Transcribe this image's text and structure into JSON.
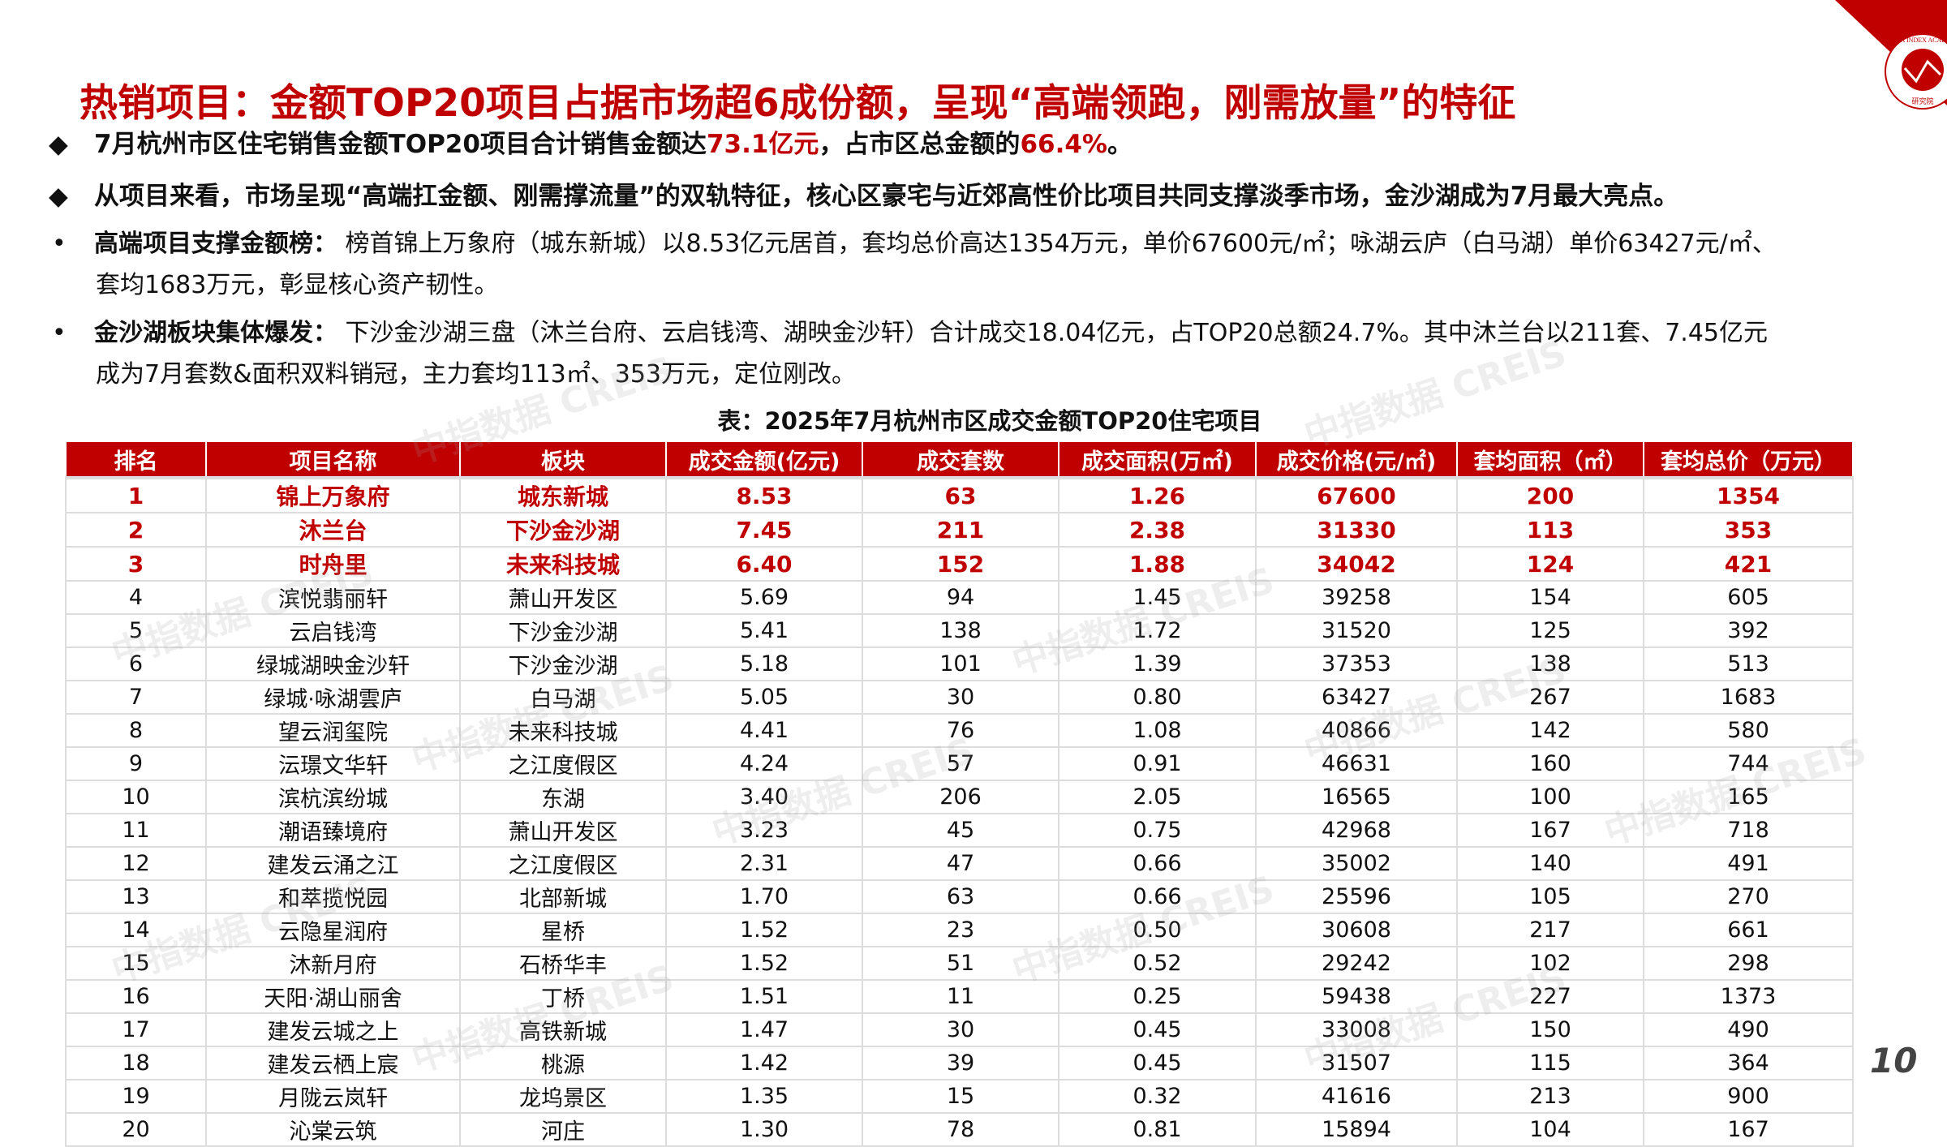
{
  "title": "热销项目：金额TOP20项目占据市场超6成份额，呈现“高端领跑，刚需放量”的特征",
  "logo": {
    "text": "CHINA INDEX ACADEMY",
    "inner": "中指",
    "bottom": "研究院"
  },
  "watermark": "中指数据 CREIS",
  "bullets": [
    {
      "icon": "diamond",
      "parts": [
        "7月杭州市区住宅销售金额TOP20项目合计销售金额达",
        "73.1亿元",
        "，占市区总金额的",
        "66.4%",
        "。"
      ]
    },
    {
      "icon": "diamond",
      "text": "从项目来看，市场呈现“高端扛金额、刚需撑流量”的双轨特征，核心区豪宅与近郊高性价比项目共同支撑淡季市场，金沙湖成为7月最大亮点。"
    },
    {
      "icon": "dot",
      "label": "高端项目支撑金额榜：",
      "line1": "榜首锦上万象府（城东新城）以8.53亿元居首，套均总价高达1354万元，单价67600元/㎡；咏湖云庐（白马湖）单价63427元/㎡、",
      "line2": "套均1683万元，彰显核心资产韧性。"
    },
    {
      "icon": "dot",
      "label": "金沙湖板块集体爆发：",
      "line1": "下沙金沙湖三盘（沐兰台府、云启钱湾、湖映金沙轩）合计成交18.04亿元，占TOP20总额24.7%。其中沐兰台以211套、7.45亿元",
      "line2": "成为7月套数&面积双料销冠，主力套均113㎡、353万元，定位刚改。"
    }
  ],
  "table": {
    "caption": "表：2025年7月杭州市区成交金额TOP20住宅项目",
    "headers": [
      "排名",
      "项目名称",
      "板块",
      "成交金额(亿元)",
      "成交套数",
      "成交面积(万㎡)",
      "成交价格(元/㎡)",
      "套均面积（㎡）",
      "套均总价（万元）"
    ],
    "highlight_color": "#c00000",
    "rows": [
      [
        "1",
        "锦上万象府",
        "城东新城",
        "8.53",
        "63",
        "1.26",
        "67600",
        "200",
        "1354"
      ],
      [
        "2",
        "沐兰台",
        "下沙金沙湖",
        "7.45",
        "211",
        "2.38",
        "31330",
        "113",
        "353"
      ],
      [
        "3",
        "时舟里",
        "未来科技城",
        "6.40",
        "152",
        "1.88",
        "34042",
        "124",
        "421"
      ],
      [
        "4",
        "滨悦翡丽轩",
        "萧山开发区",
        "5.69",
        "94",
        "1.45",
        "39258",
        "154",
        "605"
      ],
      [
        "5",
        "云启钱湾",
        "下沙金沙湖",
        "5.41",
        "138",
        "1.72",
        "31520",
        "125",
        "392"
      ],
      [
        "6",
        "绿城湖映金沙轩",
        "下沙金沙湖",
        "5.18",
        "101",
        "1.39",
        "37353",
        "138",
        "513"
      ],
      [
        "7",
        "绿城·咏湖雲庐",
        "白马湖",
        "5.05",
        "30",
        "0.80",
        "63427",
        "267",
        "1683"
      ],
      [
        "8",
        "望云润玺院",
        "未来科技城",
        "4.41",
        "76",
        "1.08",
        "40866",
        "142",
        "580"
      ],
      [
        "9",
        "沄璟文华轩",
        "之江度假区",
        "4.24",
        "57",
        "0.91",
        "46631",
        "160",
        "744"
      ],
      [
        "10",
        "滨杭滨纷城",
        "东湖",
        "3.40",
        "206",
        "2.05",
        "16565",
        "100",
        "165"
      ],
      [
        "11",
        "潮语臻境府",
        "萧山开发区",
        "3.23",
        "45",
        "0.75",
        "42968",
        "167",
        "718"
      ],
      [
        "12",
        "建发云涌之江",
        "之江度假区",
        "2.31",
        "47",
        "0.66",
        "35002",
        "140",
        "491"
      ],
      [
        "13",
        "和萃揽悦园",
        "北部新城",
        "1.70",
        "63",
        "0.66",
        "25596",
        "105",
        "270"
      ],
      [
        "14",
        "云隐星润府",
        "星桥",
        "1.52",
        "23",
        "0.50",
        "30608",
        "217",
        "661"
      ],
      [
        "15",
        "沐新月府",
        "石桥华丰",
        "1.52",
        "51",
        "0.52",
        "29242",
        "102",
        "298"
      ],
      [
        "16",
        "天阳·湖山丽舍",
        "丁桥",
        "1.51",
        "11",
        "0.25",
        "59438",
        "227",
        "1373"
      ],
      [
        "17",
        "建发云城之上",
        "高铁新城",
        "1.47",
        "30",
        "0.45",
        "33008",
        "150",
        "490"
      ],
      [
        "18",
        "建发云栖上宸",
        "桃源",
        "1.42",
        "39",
        "0.45",
        "31507",
        "115",
        "364"
      ],
      [
        "19",
        "月陇云岚轩",
        "龙坞景区",
        "1.35",
        "15",
        "0.32",
        "41616",
        "213",
        "900"
      ],
      [
        "20",
        "沁棠云筑",
        "河庄",
        "1.30",
        "78",
        "0.81",
        "15894",
        "104",
        "167"
      ]
    ]
  },
  "page_number": "10"
}
